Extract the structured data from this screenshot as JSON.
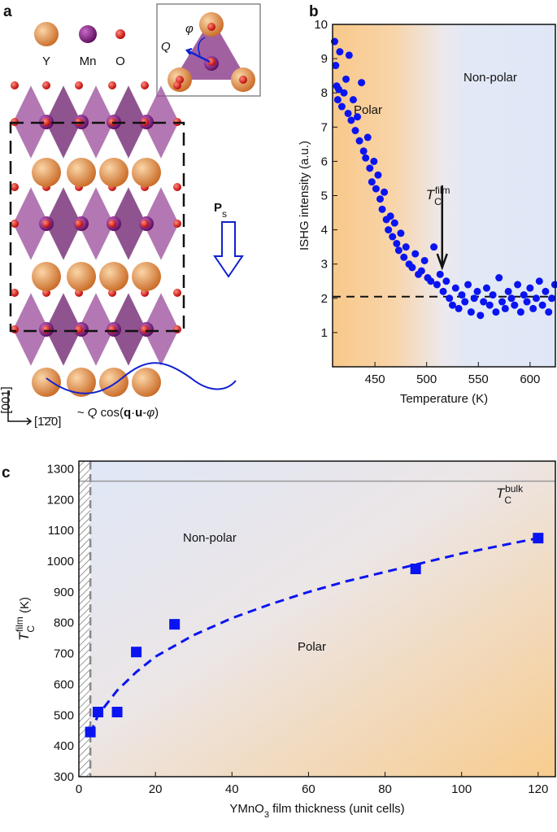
{
  "diagram": {
    "label": "a",
    "legend": [
      "Y",
      "Mn",
      "O"
    ],
    "inset": {
      "amplitude": "Q",
      "phase": "φ"
    },
    "polarization": {
      "main": "P",
      "sub": "s"
    },
    "axes": [
      "[001]",
      "[1̄2̄0]"
    ],
    "formula": [
      "~ ",
      "Q",
      " cos(",
      "q",
      "·",
      "u",
      "-",
      "φ",
      ")"
    ]
  },
  "chart_data": [
    {
      "type": "scatter",
      "panel_label": "b",
      "xlabel": "Temperature (K)",
      "ylabel": "ISHG intensity (a.u.)",
      "xlim": [
        409,
        624.5
      ],
      "ylim": [
        0,
        10
      ],
      "xticks": [
        450,
        500,
        550,
        600
      ],
      "yticks": [
        1,
        2,
        3,
        4,
        5,
        6,
        7,
        8,
        9,
        10
      ],
      "regions": [
        "Polar",
        "Non-polar"
      ],
      "tc_label": {
        "main": "T",
        "sub": "C",
        "sup": "film"
      },
      "tc_value": 515,
      "baseline": 2.05,
      "series": [
        {
          "color": "#0a14f0",
          "x": [
            411,
            412,
            413,
            414,
            415,
            416,
            418,
            420,
            422,
            424,
            425,
            427,
            429,
            431,
            433,
            435,
            437,
            439,
            441,
            443,
            445,
            447,
            449,
            451,
            453,
            455,
            457,
            459,
            461,
            463,
            465,
            467,
            469,
            471,
            473,
            475,
            478,
            480,
            483,
            486,
            489,
            492,
            495,
            498,
            501,
            504,
            507,
            510,
            513,
            516,
            519,
            522,
            525,
            528,
            531,
            534,
            537,
            540,
            543,
            546,
            549,
            552,
            555,
            558,
            561,
            564,
            567,
            570,
            573,
            576,
            579,
            582,
            585,
            588,
            591,
            594,
            597,
            600,
            603,
            606,
            609,
            612,
            615,
            618,
            621,
            624
          ],
          "values": [
            9.5,
            8.8,
            8.2,
            7.8,
            8.1,
            9.2,
            7.6,
            8.0,
            8.4,
            7.4,
            9.1,
            7.2,
            7.8,
            6.9,
            7.3,
            6.6,
            8.3,
            6.3,
            6.1,
            6.7,
            5.8,
            5.4,
            6.0,
            5.2,
            5.6,
            4.9,
            4.6,
            5.1,
            4.3,
            4.0,
            4.4,
            3.8,
            4.2,
            3.6,
            3.4,
            3.9,
            3.2,
            3.5,
            3.0,
            2.9,
            3.3,
            2.7,
            2.8,
            3.1,
            2.6,
            2.5,
            3.5,
            2.4,
            2.7,
            2.2,
            2.5,
            2.0,
            1.8,
            2.3,
            1.7,
            2.1,
            1.9,
            2.4,
            1.6,
            2.0,
            2.2,
            1.5,
            1.9,
            2.3,
            1.8,
            2.1,
            1.6,
            2.6,
            1.9,
            1.7,
            2.2,
            2.0,
            1.8,
            2.4,
            1.6,
            2.1,
            1.9,
            2.3,
            1.7,
            2.0,
            2.5,
            1.8,
            2.2,
            1.6,
            2.0,
            2.4
          ]
        }
      ]
    },
    {
      "type": "scatter",
      "panel_label": "c",
      "xlabel": [
        "YMnO",
        "3",
        " film thickness (unit cells)"
      ],
      "ylabel": {
        "main": "T",
        "sub": "C",
        "sup": "film",
        "unit": " (K)"
      },
      "xlim": [
        0,
        124.5
      ],
      "ylim": [
        300,
        1325
      ],
      "xticks": [
        0,
        20,
        40,
        60,
        80,
        100,
        120
      ],
      "yticks": [
        300,
        400,
        500,
        600,
        700,
        800,
        900,
        1000,
        1100,
        1200,
        1300
      ],
      "regions": [
        "Non-polar",
        "Polar"
      ],
      "bulk_label": {
        "main": "T",
        "sub": "C",
        "sup": "bulk"
      },
      "bulk_tc": 1260,
      "thickness_limit": 3,
      "series": [
        {
          "color": "#0a14f0",
          "x": [
            3,
            5,
            10,
            15,
            25,
            88,
            120
          ],
          "values": [
            445,
            510,
            510,
            705,
            795,
            975,
            1075
          ]
        }
      ],
      "fit": {
        "color": "#0a14f0",
        "x": [
          3,
          5,
          10,
          15,
          20,
          30,
          40,
          50,
          60,
          70,
          80,
          90,
          100,
          110,
          120
        ],
        "values": [
          440,
          500,
          580,
          640,
          690,
          760,
          815,
          860,
          900,
          935,
          965,
          995,
          1025,
          1050,
          1075
        ]
      }
    }
  ]
}
